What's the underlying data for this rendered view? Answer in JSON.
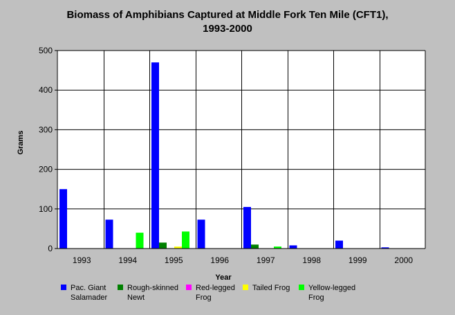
{
  "chart_data": {
    "type": "bar",
    "title_line1": "Biomass of Amphibians Captured at Middle Fork Ten Mile (CFT1),",
    "title_line2": "1993-2000",
    "xlabel": "Year",
    "ylabel": "Grams",
    "ylim": [
      0,
      500
    ],
    "yticks": [
      "0",
      "100",
      "200",
      "300",
      "400",
      "500"
    ],
    "categories": [
      "1993",
      "1994",
      "1995",
      "1996",
      "1997",
      "1998",
      "1999",
      "2000"
    ],
    "grid": true,
    "legend_position": "bottom",
    "series": [
      {
        "name": "Pac. Giant Salamader",
        "name_line1": "Pac. Giant",
        "name_line2": "Salamader",
        "color": "#0000ff",
        "values": [
          150,
          73,
          470,
          73,
          105,
          8,
          20,
          3
        ]
      },
      {
        "name": "Rough-skinned Newt",
        "name_line1": "Rough-skinned",
        "name_line2": "Newt",
        "color": "#008000",
        "values": [
          0,
          0,
          15,
          0,
          10,
          0,
          0,
          0
        ]
      },
      {
        "name": "Red-legged Frog",
        "name_line1": "Red-legged",
        "name_line2": "Frog",
        "color": "#ff00ff",
        "values": [
          0,
          0,
          0,
          0,
          0,
          0,
          0,
          0
        ]
      },
      {
        "name": "Tailed Frog",
        "name_line1": "Tailed Frog",
        "name_line2": "",
        "color": "#ffff00",
        "values": [
          0,
          0,
          5,
          0,
          0,
          0,
          0,
          0
        ]
      },
      {
        "name": "Yellow-legged Frog",
        "name_line1": "Yellow-legged",
        "name_line2": "Frog",
        "color": "#00ff00",
        "values": [
          0,
          40,
          43,
          0,
          5,
          0,
          0,
          0
        ]
      }
    ]
  }
}
